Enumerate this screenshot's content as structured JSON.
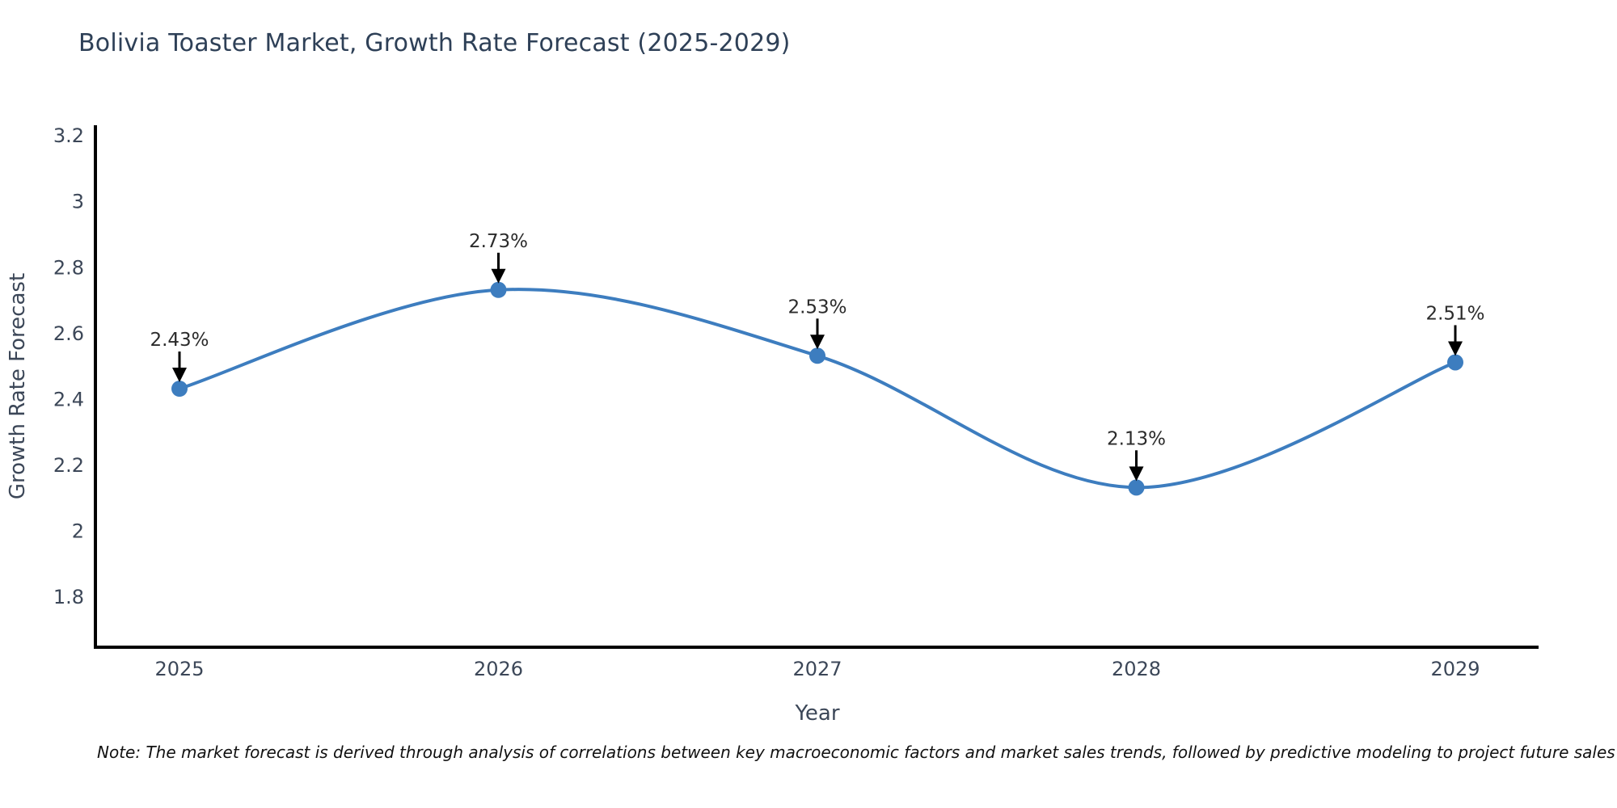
{
  "title": "Bolivia Toaster Market, Growth Rate Forecast (2025-2029)",
  "note": "Note: The market forecast is derived through analysis of correlations between key macroeconomic factors and market sales trends, followed by predictive modeling to project future sales",
  "chart_data": {
    "type": "line",
    "title": "Bolivia Toaster Market, Growth Rate Forecast (2025-2029)",
    "categories": [
      "2025",
      "2026",
      "2027",
      "2028",
      "2029"
    ],
    "values": [
      2.43,
      2.73,
      2.53,
      2.13,
      2.51
    ],
    "point_labels": [
      "2.43%",
      "2.73%",
      "2.53%",
      "2.13%",
      "2.51%"
    ],
    "xlabel": "Year",
    "ylabel": "Growth Rate Forecast",
    "ylim": [
      1.645,
      3.23
    ],
    "y_ticks": [
      3.2,
      3,
      2.8,
      2.6,
      2.4,
      2.2,
      2,
      1.8
    ],
    "y_tick_labels": [
      "3.2",
      "3",
      "2.8",
      "2.6",
      "2.4",
      "2.2",
      "2",
      "1.8"
    ],
    "grid": false,
    "legend": "none",
    "line_shape": "spline",
    "annotations": "value labels with downward arrows above each point",
    "colors": {
      "line": "#3d7dbf",
      "marker": "#3d7dbf",
      "annotation_text": "#2b2b2b",
      "arrow": "#000000",
      "axis_text": "#3c4758",
      "title_text": "#2e4057",
      "spine": "#000000",
      "background": "#ffffff"
    }
  }
}
